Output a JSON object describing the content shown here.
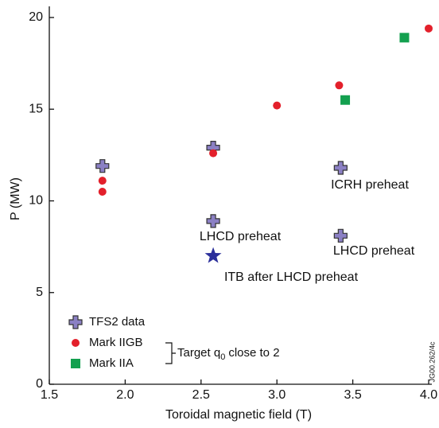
{
  "chart_data": {
    "type": "scatter",
    "xlabel": "Toroidal magnetic field (T)",
    "ylabel": "P (MW)",
    "xlim": [
      1.5,
      4.0
    ],
    "ylim": [
      0,
      20
    ],
    "xticks": [
      1.5,
      {
        "value": 2.0,
        "label": "2.0"
      },
      2.5,
      {
        "value": 3.0,
        "label": "3.0"
      },
      3.5,
      {
        "value": 4.0,
        "label": "4.0"
      }
    ],
    "yticks": [
      0,
      5,
      10,
      15,
      20
    ],
    "series": [
      {
        "name": "TFS2 data",
        "marker": "plus",
        "color": "#8b80c4",
        "x": [
          1.85,
          2.58,
          2.58,
          3.42,
          3.42
        ],
        "values": [
          11.9,
          12.9,
          8.9,
          11.8,
          8.1
        ]
      },
      {
        "name": "Mark IIGB",
        "marker": "circle",
        "color": "#e3202b",
        "x": [
          1.85,
          1.85,
          2.58,
          3.0,
          3.41,
          4.0
        ],
        "values": [
          11.1,
          10.5,
          12.6,
          15.2,
          16.3,
          19.4
        ]
      },
      {
        "name": "Mark IIA",
        "marker": "square",
        "color": "#13a04f",
        "x": [
          3.45,
          3.84
        ],
        "values": [
          15.5,
          18.9
        ]
      }
    ],
    "star_point": {
      "marker": "star",
      "color": "#2b2f9b",
      "x": 2.58,
      "y": 7.0
    },
    "annotations": [
      "ICRH preheat",
      "LHCD preheat",
      "LHCD preheat",
      "ITB after LHCD preheat"
    ],
    "target_note": [
      "Target q",
      "0",
      "close to 2"
    ],
    "figure_code": "JG00.262/4c"
  }
}
